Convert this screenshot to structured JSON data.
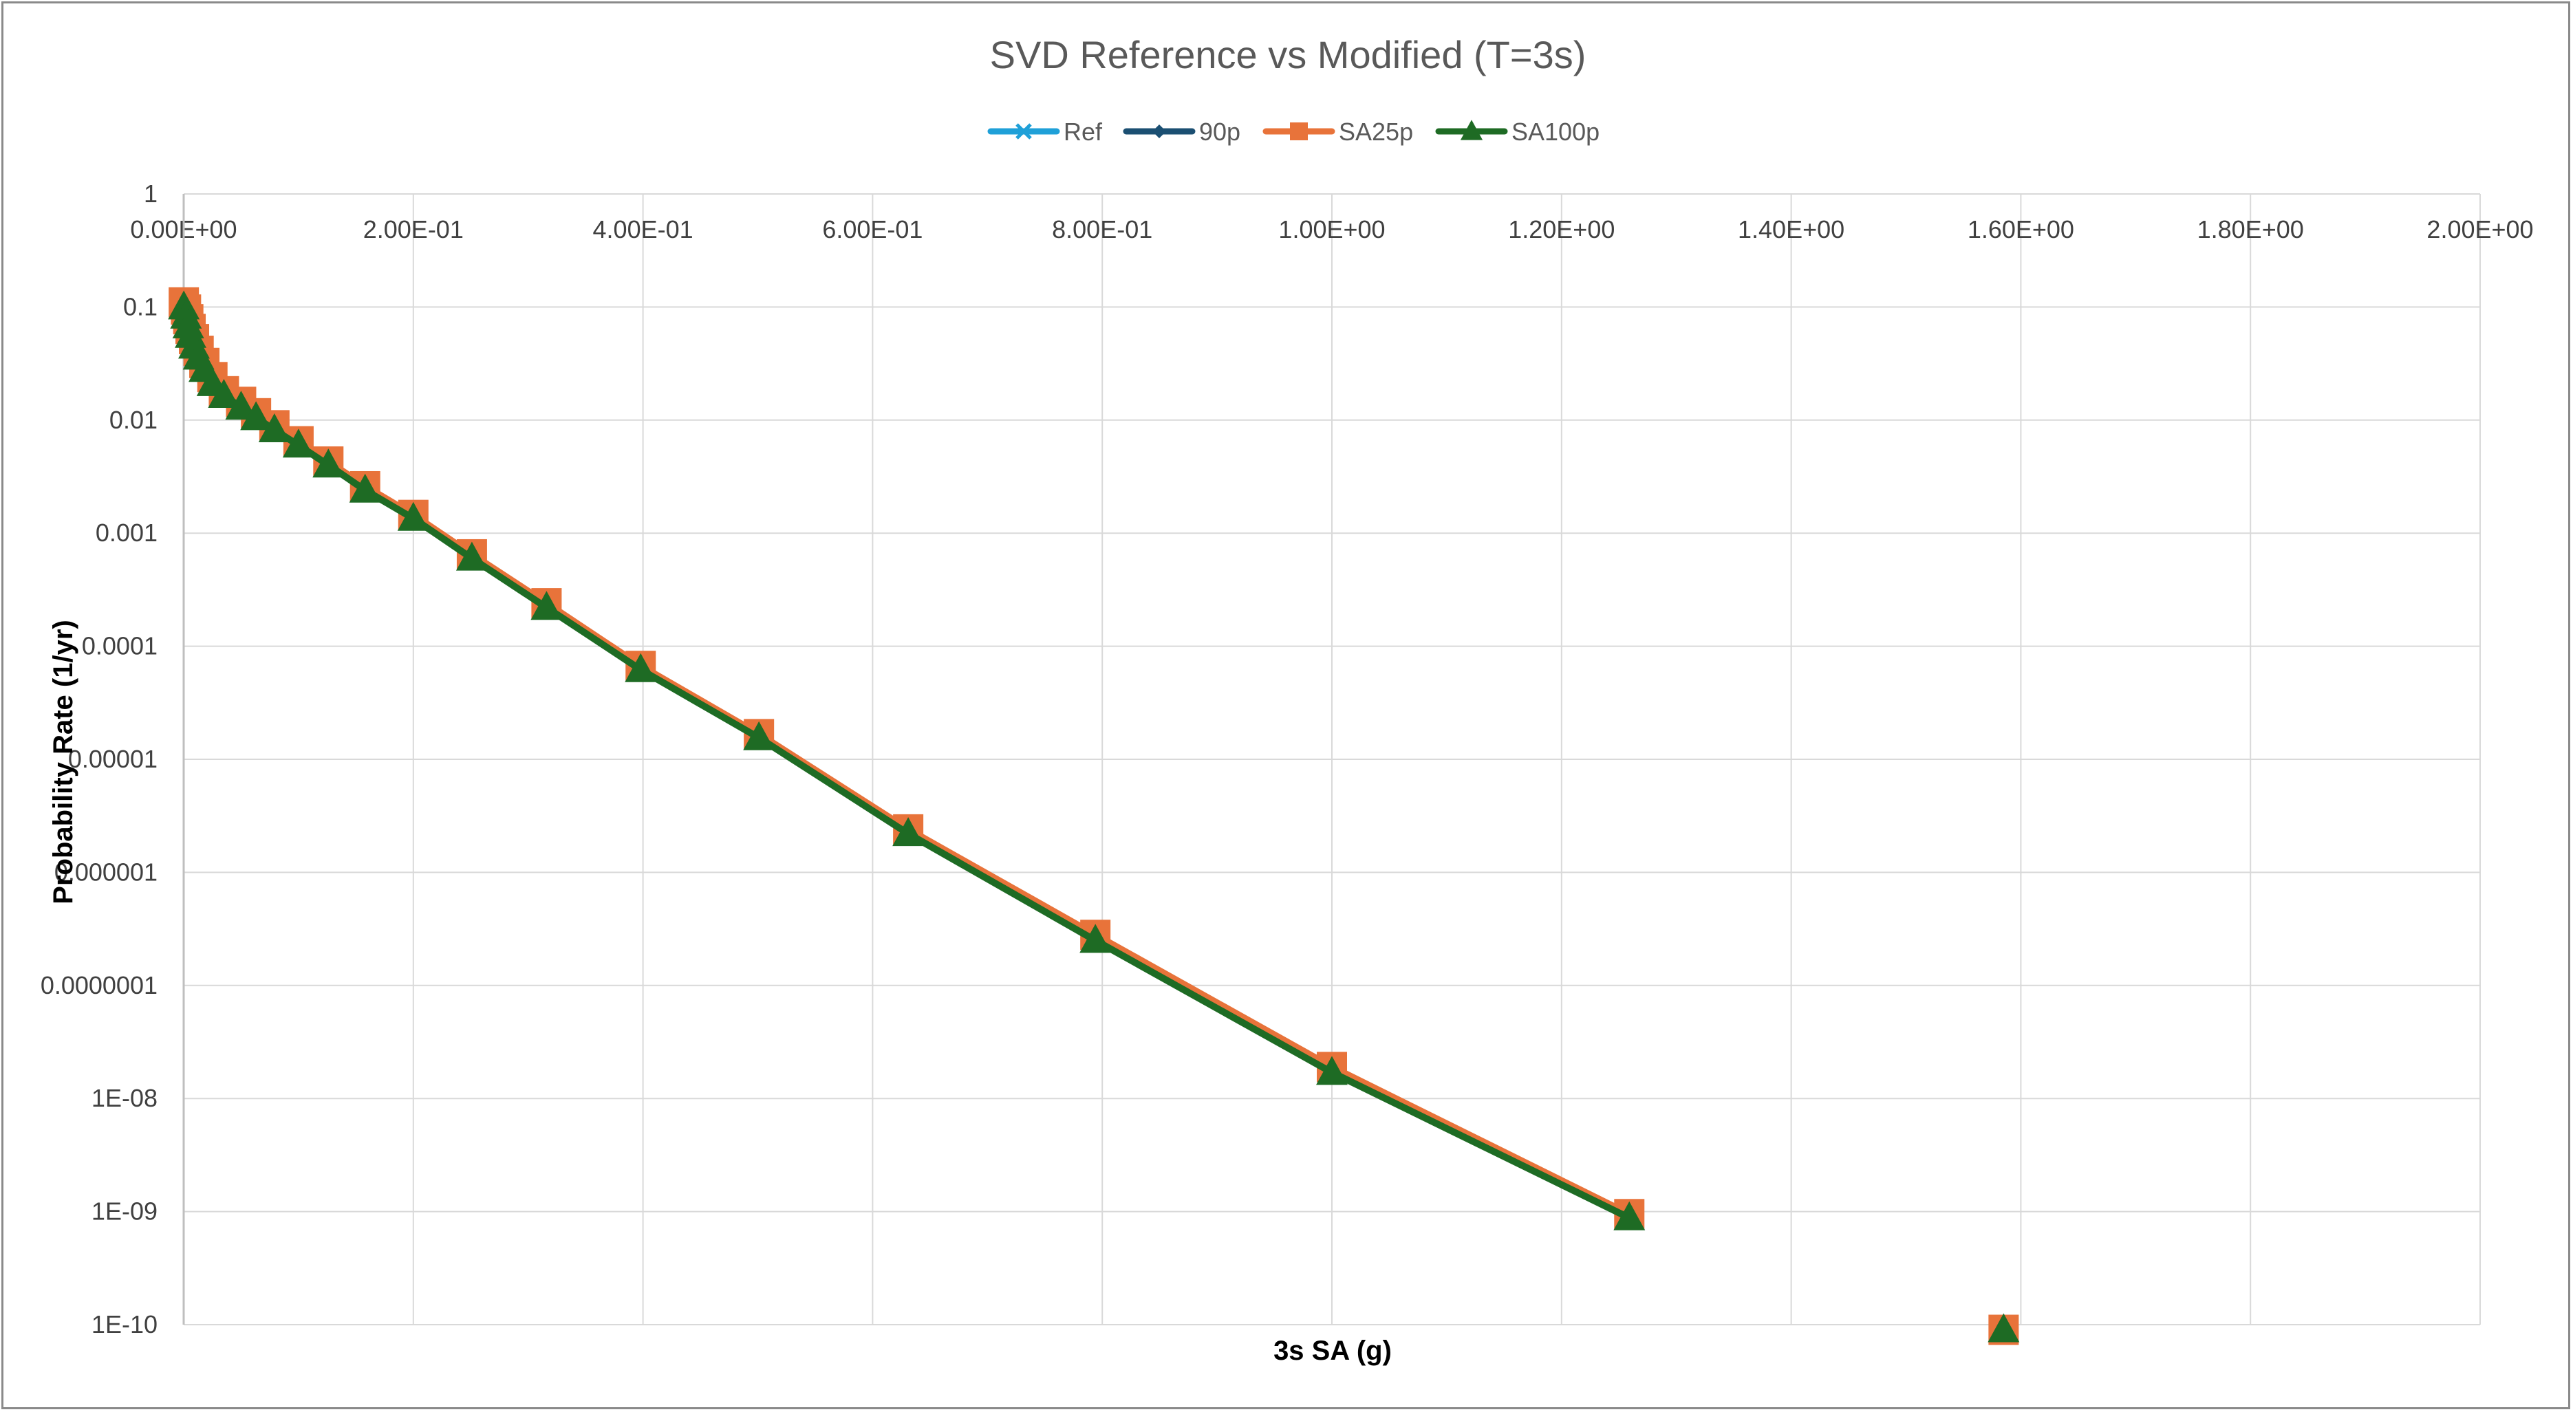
{
  "chart_data": {
    "type": "scatter",
    "title": "SVD Reference vs Modified (T=3s)",
    "xlabel": "3s SA (g)",
    "ylabel": "Probability Rate (1/yr)",
    "xlim": [
      0,
      2
    ],
    "ylim": [
      1e-10,
      1
    ],
    "y_scale": "log",
    "x_axis_position": "top",
    "grid": true,
    "legend_position": "top",
    "x_ticks": [
      0,
      0.2,
      0.4,
      0.6,
      0.8,
      1.0,
      1.2,
      1.4,
      1.6,
      1.8,
      2.0
    ],
    "x_tick_labels": [
      "0.00E+00",
      "2.00E-01",
      "4.00E-01",
      "6.00E-01",
      "8.00E-01",
      "1.00E+00",
      "1.20E+00",
      "1.40E+00",
      "1.60E+00",
      "1.80E+00",
      "2.00E+00"
    ],
    "y_ticks": [
      1,
      0.1,
      0.01,
      0.001,
      0.0001,
      1e-05,
      1e-06,
      1e-07,
      1e-08,
      1e-09,
      1e-10
    ],
    "y_tick_labels": [
      "1",
      "0.1",
      "0.01",
      "0.001",
      "0.0001",
      "0.00001",
      "0.000001",
      "0.0000001",
      "1E-08",
      "1E-09",
      "1E-10"
    ],
    "x": [
      0.0001,
      0.002,
      0.004,
      0.006,
      0.009,
      0.013,
      0.018,
      0.025,
      0.035,
      0.05,
      0.063,
      0.079,
      0.1,
      0.126,
      0.158,
      0.2,
      0.251,
      0.316,
      0.398,
      0.501,
      0.631,
      0.794,
      1.0,
      1.259,
      1.585
    ],
    "series": [
      {
        "name": "Ref",
        "color": "#1fa0d8",
        "marker": "x",
        "values": [
          0.1,
          0.085,
          0.07,
          0.058,
          0.047,
          0.037,
          0.029,
          0.022,
          0.017,
          0.0135,
          0.011,
          0.0085,
          0.0062,
          0.0041,
          0.0025,
          0.0014,
          0.00062,
          0.00023,
          6.4e-05,
          1.6e-05,
          2.3e-06,
          2.6e-07,
          1.8e-08,
          9e-10,
          9e-11
        ]
      },
      {
        "name": "90p",
        "color": "#1b4f72",
        "marker": "diamond",
        "values": [
          0.1,
          0.085,
          0.07,
          0.058,
          0.047,
          0.037,
          0.029,
          0.022,
          0.017,
          0.0135,
          0.011,
          0.0085,
          0.0062,
          0.0041,
          0.0025,
          0.0014,
          0.00062,
          0.00023,
          6.4e-05,
          1.6e-05,
          2.3e-06,
          2.6e-07,
          1.8e-08,
          9e-10,
          9e-11
        ]
      },
      {
        "name": "SA25p",
        "color": "#e8733a",
        "marker": "square",
        "values": [
          0.11,
          0.095,
          0.078,
          0.064,
          0.052,
          0.041,
          0.032,
          0.024,
          0.018,
          0.0145,
          0.0115,
          0.009,
          0.0065,
          0.0043,
          0.0026,
          0.00145,
          0.00065,
          0.00024,
          6.7e-05,
          1.67e-05,
          2.4e-06,
          2.8e-07,
          1.9e-08,
          9.5e-10,
          9e-11
        ]
      },
      {
        "name": "SA100p",
        "color": "#1e6b24",
        "marker": "triangle",
        "values": [
          0.1,
          0.083,
          0.068,
          0.056,
          0.045,
          0.036,
          0.028,
          0.021,
          0.0165,
          0.013,
          0.0105,
          0.0082,
          0.006,
          0.004,
          0.0024,
          0.00135,
          0.0006,
          0.00022,
          6.2e-05,
          1.55e-05,
          2.2e-06,
          2.5e-07,
          1.7e-08,
          8.8e-10,
          9e-11
        ]
      }
    ]
  }
}
